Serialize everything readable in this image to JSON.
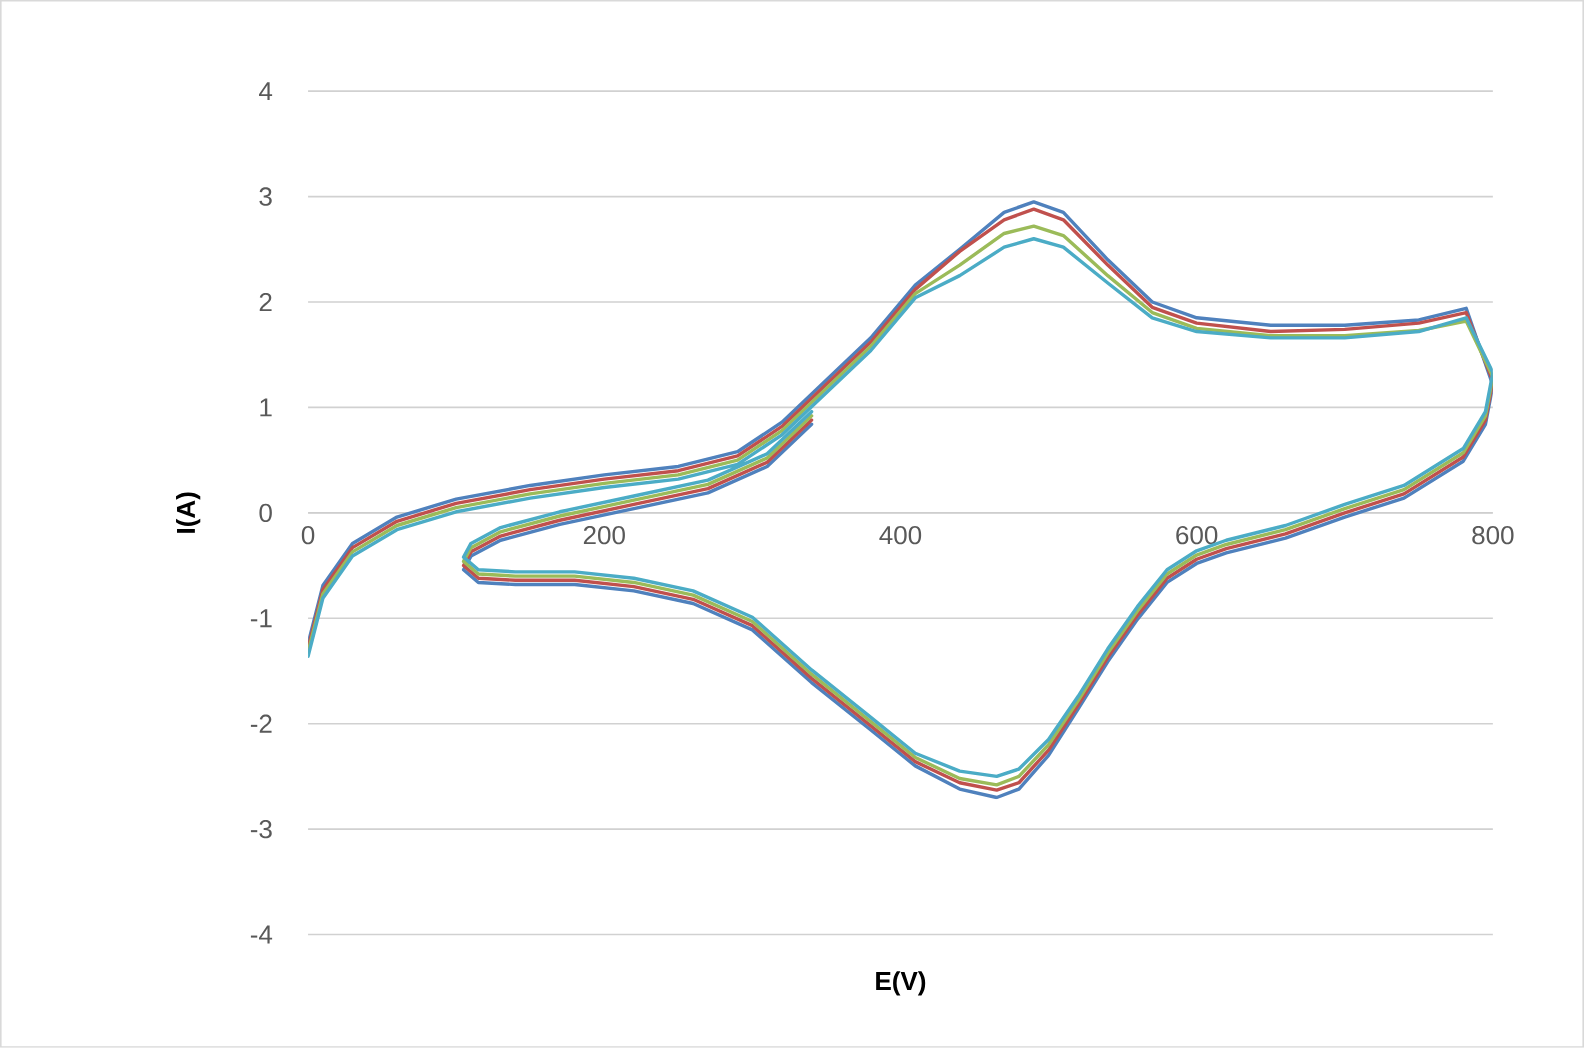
{
  "chart_data": {
    "type": "line",
    "xlabel": "E(V)",
    "ylabel": "I(A)",
    "x": [
      0,
      10,
      30,
      60,
      100,
      150,
      200,
      250,
      290,
      320,
      350,
      380,
      410,
      440,
      470,
      490,
      510,
      540,
      570,
      600,
      650,
      700,
      750,
      782,
      800,
      795,
      780,
      740,
      700,
      660,
      620,
      600,
      580,
      560,
      540,
      520,
      500,
      480,
      465,
      440,
      410,
      380,
      340,
      300,
      260,
      220,
      180,
      140,
      115,
      105,
      110,
      130,
      170,
      220,
      270,
      310,
      340
    ],
    "series": [
      {
        "color": "#4f81bd",
        "values": [
          -1.24,
          -0.69,
          -0.29,
          -0.04,
          0.13,
          0.26,
          0.36,
          0.44,
          0.58,
          0.86,
          1.26,
          1.66,
          2.16,
          2.5,
          2.85,
          2.95,
          2.85,
          2.4,
          2.0,
          1.85,
          1.78,
          1.78,
          1.83,
          1.94,
          1.21,
          0.84,
          0.49,
          0.14,
          -0.04,
          -0.24,
          -0.38,
          -0.48,
          -0.66,
          -1.01,
          -1.41,
          -1.86,
          -2.3,
          -2.62,
          -2.7,
          -2.62,
          -2.4,
          -2.06,
          -1.61,
          -1.11,
          -0.86,
          -0.74,
          -0.68,
          -0.68,
          -0.66,
          -0.54,
          -0.41,
          -0.26,
          -0.11,
          0.04,
          0.19,
          0.44,
          0.84
        ]
      },
      {
        "color": "#c0504d",
        "values": [
          -1.28,
          -0.73,
          -0.33,
          -0.08,
          0.09,
          0.22,
          0.32,
          0.4,
          0.54,
          0.82,
          1.22,
          1.62,
          2.12,
          2.48,
          2.78,
          2.88,
          2.78,
          2.35,
          1.95,
          1.8,
          1.72,
          1.74,
          1.8,
          1.9,
          1.25,
          0.88,
          0.53,
          0.18,
          0,
          -0.2,
          -0.34,
          -0.44,
          -0.62,
          -0.97,
          -1.37,
          -1.82,
          -2.25,
          -2.56,
          -2.63,
          -2.56,
          -2.36,
          -2.02,
          -1.57,
          -1.07,
          -0.82,
          -0.7,
          -0.64,
          -0.64,
          -0.62,
          -0.5,
          -0.37,
          -0.22,
          -0.07,
          0.08,
          0.23,
          0.48,
          0.88
        ]
      },
      {
        "color": "#9bbb59",
        "values": [
          -1.32,
          -0.77,
          -0.37,
          -0.12,
          0.05,
          0.18,
          0.28,
          0.36,
          0.5,
          0.78,
          1.18,
          1.58,
          2.08,
          2.35,
          2.65,
          2.72,
          2.63,
          2.25,
          1.9,
          1.75,
          1.68,
          1.68,
          1.73,
          1.82,
          1.29,
          0.92,
          0.57,
          0.22,
          0.04,
          -0.16,
          -0.3,
          -0.4,
          -0.58,
          -0.93,
          -1.33,
          -1.78,
          -2.2,
          -2.5,
          -2.58,
          -2.52,
          -2.32,
          -1.98,
          -1.53,
          -1.03,
          -0.78,
          -0.66,
          -0.6,
          -0.6,
          -0.58,
          -0.46,
          -0.33,
          -0.18,
          -0.03,
          0.12,
          0.27,
          0.52,
          0.92
        ]
      },
      {
        "color": "#4bacc6",
        "values": [
          -1.36,
          -0.81,
          -0.41,
          -0.16,
          0.01,
          0.14,
          0.24,
          0.32,
          0.46,
          0.74,
          1.14,
          1.54,
          2.04,
          2.25,
          2.52,
          2.6,
          2.52,
          2.18,
          1.85,
          1.72,
          1.66,
          1.66,
          1.72,
          1.85,
          1.33,
          0.96,
          0.61,
          0.26,
          0.08,
          -0.12,
          -0.26,
          -0.36,
          -0.54,
          -0.89,
          -1.29,
          -1.74,
          -2.15,
          -2.43,
          -2.5,
          -2.45,
          -2.28,
          -1.94,
          -1.49,
          -0.99,
          -0.74,
          -0.62,
          -0.56,
          -0.56,
          -0.54,
          -0.42,
          -0.29,
          -0.14,
          0.01,
          0.16,
          0.31,
          0.56,
          0.96
        ]
      }
    ],
    "xlim": [
      0,
      800
    ],
    "xticks": [
      0,
      200,
      400,
      600,
      800
    ],
    "ylim": [
      -4,
      4
    ],
    "yticks": [
      -4,
      -3,
      -2,
      -1,
      0,
      1,
      2,
      3,
      4
    ],
    "grid": "y",
    "marker": "none",
    "line_style": "solid"
  }
}
